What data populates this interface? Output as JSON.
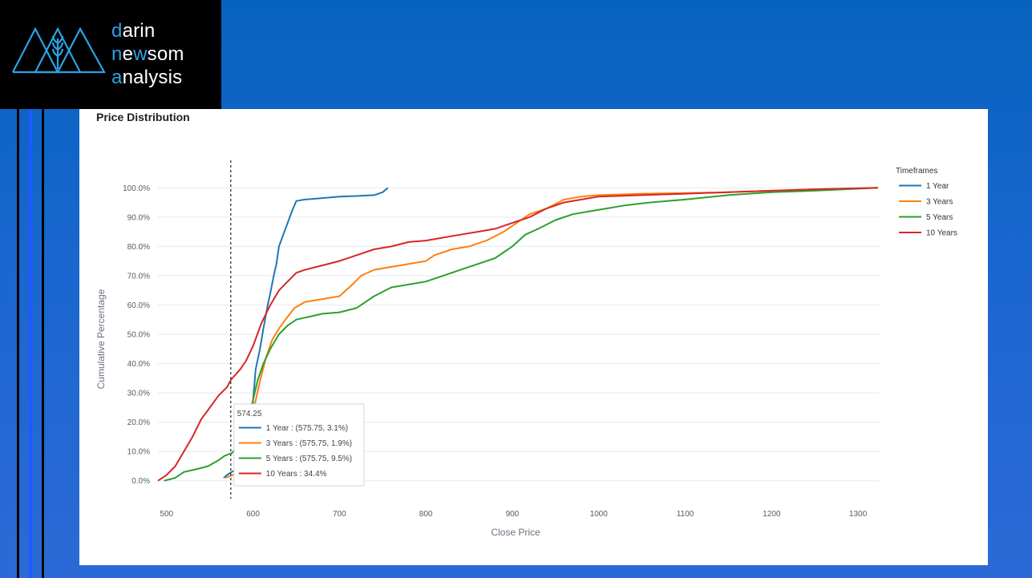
{
  "brand": {
    "line1_hl": "d",
    "line1_rest": "arin",
    "line2_hl": "n",
    "line2_mid": "e",
    "line2_hl2": "w",
    "line2_rest": "som",
    "line3_hl": "a",
    "line3_rest": "nalysis"
  },
  "panel": {
    "title": "Price Distribution"
  },
  "chart_data": {
    "type": "line",
    "title": "Price Distribution",
    "xlabel": "Close Price",
    "ylabel": "Cumulative Percentage",
    "xlim": [
      490,
      1325
    ],
    "ylim": [
      -5,
      105
    ],
    "x_ticks": [
      500,
      600,
      700,
      800,
      900,
      1000,
      1100,
      1200,
      1300
    ],
    "y_ticks": [
      0,
      10,
      20,
      30,
      40,
      50,
      60,
      70,
      80,
      90,
      100
    ],
    "y_tick_labels": [
      "0.0%",
      "10.0%",
      "20.0%",
      "30.0%",
      "40.0%",
      "50.0%",
      "60.0%",
      "70.0%",
      "80.0%",
      "90.0%",
      "100.0%"
    ],
    "grid": true,
    "legend": {
      "title": "Timeframes",
      "position": "right"
    },
    "series": [
      {
        "name": "1 Year",
        "color": "#1f77b4",
        "points": [
          [
            566,
            1
          ],
          [
            570,
            2
          ],
          [
            575.75,
            3.1
          ],
          [
            582,
            4
          ],
          [
            590,
            8
          ],
          [
            598,
            20
          ],
          [
            603,
            38
          ],
          [
            608,
            45
          ],
          [
            612,
            52
          ],
          [
            617,
            60
          ],
          [
            620,
            64
          ],
          [
            624,
            70
          ],
          [
            627,
            74
          ],
          [
            630,
            80
          ],
          [
            635,
            84
          ],
          [
            640,
            88
          ],
          [
            645,
            92
          ],
          [
            650,
            95.5
          ],
          [
            660,
            96
          ],
          [
            680,
            96.5
          ],
          [
            700,
            97
          ],
          [
            720,
            97.2
          ],
          [
            740,
            97.5
          ],
          [
            750,
            98.5
          ],
          [
            756,
            100
          ]
        ]
      },
      {
        "name": "3 Years",
        "color": "#ff7f0e",
        "points": [
          [
            568,
            1
          ],
          [
            575.75,
            1.9
          ],
          [
            585,
            3
          ],
          [
            595,
            12
          ],
          [
            602,
            26
          ],
          [
            608,
            34
          ],
          [
            615,
            42
          ],
          [
            622,
            48
          ],
          [
            630,
            52
          ],
          [
            640,
            56
          ],
          [
            648,
            59
          ],
          [
            660,
            61
          ],
          [
            680,
            62
          ],
          [
            700,
            63
          ],
          [
            715,
            67
          ],
          [
            725,
            70
          ],
          [
            740,
            72
          ],
          [
            760,
            73
          ],
          [
            780,
            74
          ],
          [
            800,
            75
          ],
          [
            810,
            77
          ],
          [
            830,
            79
          ],
          [
            850,
            80
          ],
          [
            870,
            82
          ],
          [
            890,
            85
          ],
          [
            905,
            88
          ],
          [
            920,
            91
          ],
          [
            940,
            93
          ],
          [
            960,
            96
          ],
          [
            980,
            97
          ],
          [
            1000,
            97.5
          ],
          [
            1050,
            98
          ],
          [
            1100,
            98.2
          ],
          [
            1150,
            98.5
          ],
          [
            1200,
            99
          ],
          [
            1250,
            99.5
          ],
          [
            1300,
            99.8
          ],
          [
            1323,
            100
          ]
        ]
      },
      {
        "name": "5 Years",
        "color": "#2ca02c",
        "points": [
          [
            497,
            0
          ],
          [
            510,
            1
          ],
          [
            520,
            3
          ],
          [
            535,
            4
          ],
          [
            548,
            5
          ],
          [
            560,
            7
          ],
          [
            567,
            8.5
          ],
          [
            575.75,
            9.5
          ],
          [
            583,
            12
          ],
          [
            590,
            18
          ],
          [
            598,
            25
          ],
          [
            605,
            34
          ],
          [
            612,
            40
          ],
          [
            620,
            45
          ],
          [
            630,
            50
          ],
          [
            640,
            53
          ],
          [
            650,
            55
          ],
          [
            665,
            56
          ],
          [
            680,
            57
          ],
          [
            700,
            57.5
          ],
          [
            720,
            59
          ],
          [
            740,
            63
          ],
          [
            760,
            66
          ],
          [
            780,
            67
          ],
          [
            800,
            68
          ],
          [
            820,
            70
          ],
          [
            840,
            72
          ],
          [
            860,
            74
          ],
          [
            880,
            76
          ],
          [
            900,
            80
          ],
          [
            915,
            84
          ],
          [
            930,
            86
          ],
          [
            950,
            89
          ],
          [
            970,
            91
          ],
          [
            990,
            92
          ],
          [
            1010,
            93
          ],
          [
            1030,
            94
          ],
          [
            1060,
            95
          ],
          [
            1100,
            96
          ],
          [
            1150,
            97.5
          ],
          [
            1200,
            98.5
          ],
          [
            1250,
            99
          ],
          [
            1300,
            99.7
          ],
          [
            1323,
            100
          ]
        ]
      },
      {
        "name": "10 Years",
        "color": "#d62728",
        "points": [
          [
            490,
            0
          ],
          [
            500,
            2
          ],
          [
            510,
            5
          ],
          [
            520,
            10
          ],
          [
            530,
            15
          ],
          [
            540,
            21
          ],
          [
            550,
            25
          ],
          [
            560,
            29
          ],
          [
            570,
            32
          ],
          [
            574.25,
            34.4
          ],
          [
            585,
            38
          ],
          [
            592,
            41
          ],
          [
            600,
            46
          ],
          [
            610,
            54
          ],
          [
            620,
            60
          ],
          [
            630,
            65
          ],
          [
            640,
            68
          ],
          [
            650,
            71
          ],
          [
            660,
            72
          ],
          [
            680,
            73.5
          ],
          [
            700,
            75
          ],
          [
            720,
            77
          ],
          [
            740,
            79
          ],
          [
            760,
            80
          ],
          [
            780,
            81.5
          ],
          [
            800,
            82
          ],
          [
            820,
            83
          ],
          [
            840,
            84
          ],
          [
            860,
            85
          ],
          [
            880,
            86
          ],
          [
            900,
            88
          ],
          [
            920,
            90
          ],
          [
            940,
            93
          ],
          [
            960,
            95
          ],
          [
            980,
            96
          ],
          [
            1000,
            97
          ],
          [
            1050,
            97.5
          ],
          [
            1100,
            98
          ],
          [
            1150,
            98.5
          ],
          [
            1200,
            99
          ],
          [
            1250,
            99.5
          ],
          [
            1323,
            100
          ]
        ]
      }
    ],
    "hover": {
      "x": 574.25,
      "header": "574.25",
      "rows": [
        {
          "text": "1 Year : (575.75, 3.1%)",
          "color": "#1f77b4"
        },
        {
          "text": "3 Years : (575.75, 1.9%)",
          "color": "#ff7f0e"
        },
        {
          "text": "5 Years : (575.75, 9.5%)",
          "color": "#2ca02c"
        },
        {
          "text": "10 Years : 34.4%",
          "color": "#d62728"
        }
      ]
    }
  }
}
